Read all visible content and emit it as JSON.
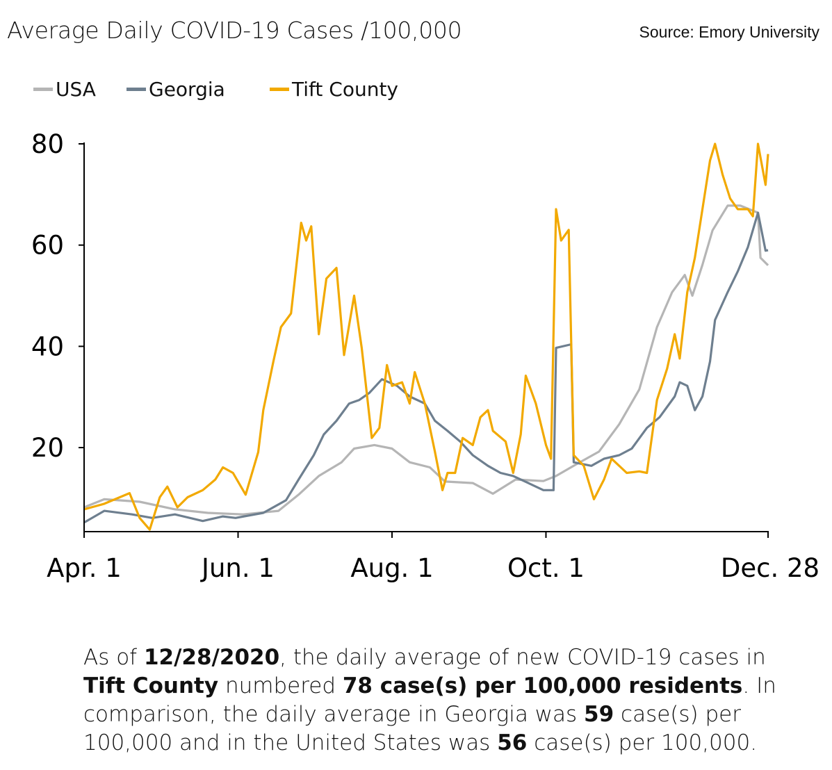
{
  "chart_data": {
    "type": "line",
    "title": "Average Daily COVID-19 Cases /100,000",
    "source": "Source: Emory University",
    "xlabel": "",
    "ylabel": "",
    "xlim": [
      "2020-04-01",
      "2020-12-28"
    ],
    "ylim": [
      3.4,
      80
    ],
    "x_ticks": [
      {
        "date": "2020-04-01",
        "label": "Apr. 1"
      },
      {
        "date": "2020-06-01",
        "label": "Jun. 1"
      },
      {
        "date": "2020-08-01",
        "label": "Aug. 1"
      },
      {
        "date": "2020-10-01",
        "label": "Oct. 1"
      },
      {
        "date": "2020-12-28",
        "label": "Dec. 28"
      }
    ],
    "y_ticks": [
      20,
      40,
      60,
      80
    ],
    "grid": false,
    "legend_position": "top-left",
    "series": [
      {
        "name": "USA",
        "color": "#b5b5b5",
        "points": [
          [
            "2020-04-01",
            8.2
          ],
          [
            "2020-04-09",
            9.8
          ],
          [
            "2020-04-23",
            9.3
          ],
          [
            "2020-05-07",
            7.8
          ],
          [
            "2020-05-20",
            7.1
          ],
          [
            "2020-06-03",
            6.8
          ],
          [
            "2020-06-17",
            7.5
          ],
          [
            "2020-06-25",
            10.7
          ],
          [
            "2020-07-03",
            14.4
          ],
          [
            "2020-07-12",
            17.1
          ],
          [
            "2020-07-17",
            19.8
          ],
          [
            "2020-07-25",
            20.5
          ],
          [
            "2020-08-01",
            19.8
          ],
          [
            "2020-08-08",
            17.1
          ],
          [
            "2020-08-16",
            16.1
          ],
          [
            "2020-08-22",
            13.3
          ],
          [
            "2020-09-02",
            13
          ],
          [
            "2020-09-10",
            10.9
          ],
          [
            "2020-09-19",
            13.7
          ],
          [
            "2020-09-30",
            13.4
          ],
          [
            "2020-10-05",
            14.4
          ],
          [
            "2020-10-13",
            16.7
          ],
          [
            "2020-10-22",
            19.2
          ],
          [
            "2020-10-30",
            24.6
          ],
          [
            "2020-11-07",
            31.5
          ],
          [
            "2020-11-14",
            43.8
          ],
          [
            "2020-11-20",
            50.7
          ],
          [
            "2020-11-25",
            54.1
          ],
          [
            "2020-11-28",
            50
          ],
          [
            "2020-12-02",
            56.1
          ],
          [
            "2020-12-06",
            62.9
          ],
          [
            "2020-12-12",
            67.8
          ],
          [
            "2020-12-17",
            67.8
          ],
          [
            "2020-12-24",
            66.4
          ],
          [
            "2020-12-25",
            57.5
          ],
          [
            "2020-12-28",
            56
          ]
        ]
      },
      {
        "name": "Georgia",
        "color": "#6e7f8f",
        "points": [
          [
            "2020-04-01",
            5.2
          ],
          [
            "2020-04-09",
            7.5
          ],
          [
            "2020-04-20",
            6.8
          ],
          [
            "2020-04-28",
            6.1
          ],
          [
            "2020-05-07",
            6.8
          ],
          [
            "2020-05-18",
            5.5
          ],
          [
            "2020-05-26",
            6.4
          ],
          [
            "2020-05-31",
            6.1
          ],
          [
            "2020-06-11",
            7.1
          ],
          [
            "2020-06-20",
            9.6
          ],
          [
            "2020-06-25",
            13.7
          ],
          [
            "2020-07-01",
            18.5
          ],
          [
            "2020-07-05",
            22.6
          ],
          [
            "2020-07-10",
            25.3
          ],
          [
            "2020-07-15",
            28.7
          ],
          [
            "2020-07-19",
            29.4
          ],
          [
            "2020-07-23",
            30.8
          ],
          [
            "2020-07-28",
            33.5
          ],
          [
            "2020-08-03",
            32.2
          ],
          [
            "2020-08-08",
            30.1
          ],
          [
            "2020-08-14",
            28.7
          ],
          [
            "2020-08-18",
            25.3
          ],
          [
            "2020-08-23",
            23.3
          ],
          [
            "2020-08-28",
            21.2
          ],
          [
            "2020-09-02",
            18.5
          ],
          [
            "2020-09-08",
            16.4
          ],
          [
            "2020-09-13",
            15
          ],
          [
            "2020-09-18",
            14.4
          ],
          [
            "2020-09-24",
            13
          ],
          [
            "2020-09-30",
            11.6
          ],
          [
            "2020-10-04",
            11.6
          ],
          [
            "2020-10-05",
            39.7
          ],
          [
            "2020-10-11",
            40.4
          ],
          [
            "2020-10-12",
            17.1
          ],
          [
            "2020-10-19",
            16.4
          ],
          [
            "2020-10-24",
            17.8
          ],
          [
            "2020-10-30",
            18.5
          ],
          [
            "2020-11-04",
            19.8
          ],
          [
            "2020-11-10",
            23.9
          ],
          [
            "2020-11-15",
            26
          ],
          [
            "2020-11-21",
            30.1
          ],
          [
            "2020-11-23",
            32.9
          ],
          [
            "2020-11-26",
            32.2
          ],
          [
            "2020-11-29",
            27.4
          ],
          [
            "2020-12-02",
            30.1
          ],
          [
            "2020-12-05",
            37
          ],
          [
            "2020-12-07",
            45.2
          ],
          [
            "2020-12-12",
            50.7
          ],
          [
            "2020-12-16",
            54.8
          ],
          [
            "2020-12-20",
            59.6
          ],
          [
            "2020-12-24",
            66.4
          ],
          [
            "2020-12-27",
            58.9
          ],
          [
            "2020-12-28",
            59
          ]
        ]
      },
      {
        "name": "Tift County",
        "color": "#f2a900",
        "points": [
          [
            "2020-04-01",
            7.8
          ],
          [
            "2020-04-09",
            8.9
          ],
          [
            "2020-04-19",
            11
          ],
          [
            "2020-04-23",
            6.1
          ],
          [
            "2020-04-27",
            3.8
          ],
          [
            "2020-05-01",
            10.2
          ],
          [
            "2020-05-04",
            12.3
          ],
          [
            "2020-05-08",
            8.2
          ],
          [
            "2020-05-12",
            10.2
          ],
          [
            "2020-05-18",
            11.6
          ],
          [
            "2020-05-23",
            13.7
          ],
          [
            "2020-05-26",
            16.1
          ],
          [
            "2020-05-30",
            15
          ],
          [
            "2020-06-04",
            10.7
          ],
          [
            "2020-06-09",
            19.1
          ],
          [
            "2020-06-11",
            27.4
          ],
          [
            "2020-06-15",
            37
          ],
          [
            "2020-06-18",
            43.8
          ],
          [
            "2020-06-22",
            46.5
          ],
          [
            "2020-06-26",
            64.4
          ],
          [
            "2020-06-28",
            60.9
          ],
          [
            "2020-06-30",
            63.7
          ],
          [
            "2020-07-03",
            42.4
          ],
          [
            "2020-07-06",
            53.4
          ],
          [
            "2020-07-10",
            55.5
          ],
          [
            "2020-07-13",
            38.3
          ],
          [
            "2020-07-17",
            50
          ],
          [
            "2020-07-20",
            39.7
          ],
          [
            "2020-07-24",
            21.9
          ],
          [
            "2020-07-27",
            23.9
          ],
          [
            "2020-07-30",
            36.3
          ],
          [
            "2020-08-01",
            32.2
          ],
          [
            "2020-08-05",
            32.9
          ],
          [
            "2020-08-08",
            28.7
          ],
          [
            "2020-08-10",
            34.9
          ],
          [
            "2020-08-14",
            28.7
          ],
          [
            "2020-08-18",
            19.2
          ],
          [
            "2020-08-21",
            11.6
          ],
          [
            "2020-08-23",
            15
          ],
          [
            "2020-08-26",
            15
          ],
          [
            "2020-08-29",
            21.9
          ],
          [
            "2020-09-02",
            20.5
          ],
          [
            "2020-09-05",
            26
          ],
          [
            "2020-09-08",
            27.4
          ],
          [
            "2020-09-10",
            23.3
          ],
          [
            "2020-09-15",
            21.2
          ],
          [
            "2020-09-18",
            15
          ],
          [
            "2020-09-21",
            22.6
          ],
          [
            "2020-09-23",
            34.2
          ],
          [
            "2020-09-27",
            28.7
          ],
          [
            "2020-10-01",
            20.5
          ],
          [
            "2020-10-03",
            17.8
          ],
          [
            "2020-10-05",
            67.1
          ],
          [
            "2020-10-07",
            60.9
          ],
          [
            "2020-10-10",
            63
          ],
          [
            "2020-10-12",
            18.5
          ],
          [
            "2020-10-16",
            16.4
          ],
          [
            "2020-10-20",
            9.8
          ],
          [
            "2020-10-24",
            13.7
          ],
          [
            "2020-10-27",
            17.8
          ],
          [
            "2020-11-02",
            15
          ],
          [
            "2020-11-07",
            15.3
          ],
          [
            "2020-11-10",
            15
          ],
          [
            "2020-11-14",
            29.4
          ],
          [
            "2020-11-18",
            35.6
          ],
          [
            "2020-11-21",
            42.4
          ],
          [
            "2020-11-23",
            37.6
          ],
          [
            "2020-11-26",
            50.7
          ],
          [
            "2020-11-29",
            57.5
          ],
          [
            "2020-12-02",
            67.1
          ],
          [
            "2020-12-05",
            76.7
          ],
          [
            "2020-12-07",
            80
          ],
          [
            "2020-12-10",
            73.9
          ],
          [
            "2020-12-13",
            69.2
          ],
          [
            "2020-12-16",
            67.1
          ],
          [
            "2020-12-20",
            67.1
          ],
          [
            "2020-12-22",
            65.7
          ],
          [
            "2020-12-24",
            80
          ],
          [
            "2020-12-27",
            71.9
          ],
          [
            "2020-12-28",
            78
          ]
        ]
      }
    ]
  },
  "summary": {
    "t1": "As of ",
    "date": "12/28/2020",
    "t2": ", the daily average of new COVID-19 cases in ",
    "county": "Tift County",
    "t3": " numbered ",
    "county_value": "78 case(s) per 100,000 residents",
    "t4": ". In comparison, the daily average in Georgia was ",
    "georgia_value": "59",
    "t5": " case(s) per 100,000 and in the United States was ",
    "usa_value": "56",
    "t6": " case(s) per 100,000."
  }
}
